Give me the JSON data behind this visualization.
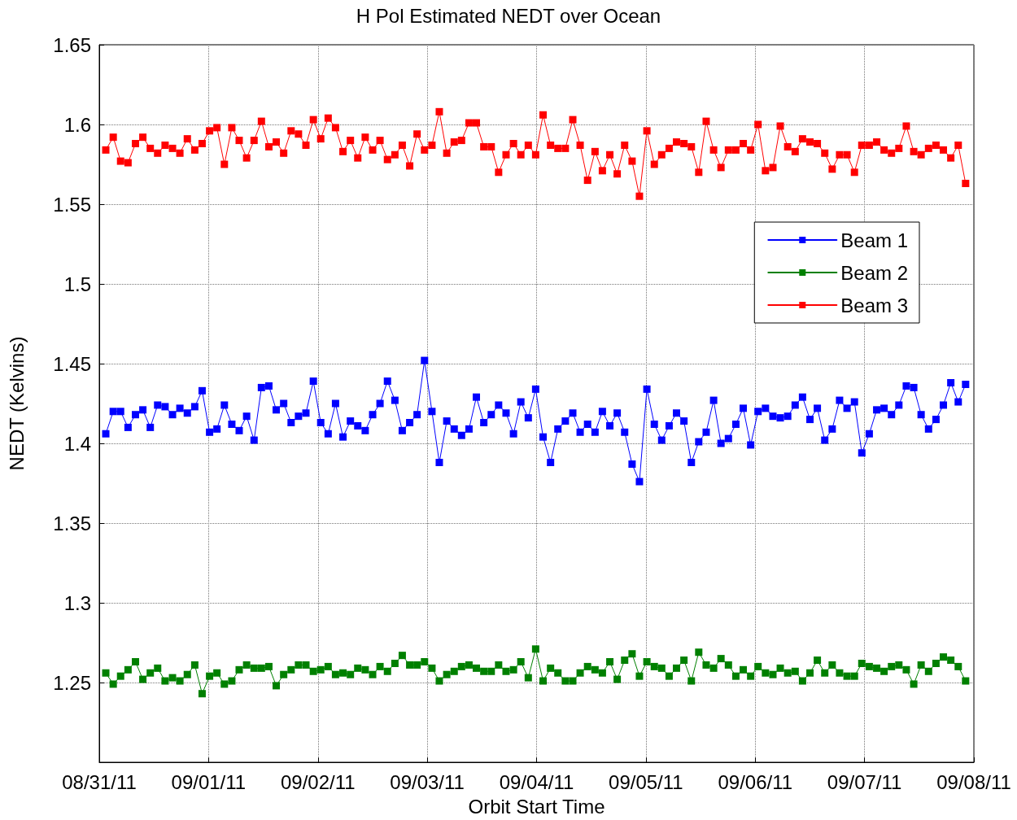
{
  "chart_data": {
    "type": "line",
    "title": "H Pol Estimated NEDT over Ocean",
    "xlabel": "Orbit Start Time",
    "ylabel": "NEDT (Kelvins)",
    "x": [
      "--08-31T01:26",
      "--08-31T03:04",
      "--08-31T04:41",
      "--08-31T06:19",
      "--08-31T07:57",
      "--08-31T09:34",
      "--08-31T11:12",
      "--08-31T12:49",
      "--08-31T14:27",
      "--08-31T16:05",
      "--08-31T17:42",
      "--08-31T19:20",
      "--08-31T20:58",
      "--08-31T22:35",
      "--09-01T00:13",
      "--09-01T01:50",
      "--09-01T03:28",
      "--09-01T05:06",
      "--09-01T06:43",
      "--09-01T08:21",
      "--09-01T09:59",
      "--09-01T11:36",
      "--09-01T13:14",
      "--09-01T14:51",
      "--09-01T16:29",
      "--09-01T18:07",
      "--09-01T19:44",
      "--09-01T21:22",
      "--09-01T23:00",
      "--09-02T00:37",
      "--09-02T02:15",
      "--09-02T03:52",
      "--09-02T05:30",
      "--09-02T07:08",
      "--09-02T08:45",
      "--09-02T10:23",
      "--09-02T12:01",
      "--09-02T13:38",
      "--09-02T15:16",
      "--09-02T16:54",
      "--09-02T18:31",
      "--09-02T20:09",
      "--09-02T21:46",
      "--09-02T23:24",
      "--09-03T01:02",
      "--09-03T02:39",
      "--09-03T04:17",
      "--09-03T05:55",
      "--09-03T07:32",
      "--09-03T09:10",
      "--09-03T10:47",
      "--09-03T12:25",
      "--09-03T14:03",
      "--09-03T15:40",
      "--09-03T17:18",
      "--09-03T18:56",
      "--09-03T20:33",
      "--09-03T22:11",
      "--09-03T23:48",
      "--09-04T01:26",
      "--09-04T03:04",
      "--09-04T04:41",
      "--09-04T06:19",
      "--09-04T07:57",
      "--09-04T09:34",
      "--09-04T11:12",
      "--09-04T12:50",
      "--09-04T14:27",
      "--09-04T16:05",
      "--09-04T17:42",
      "--09-04T19:20",
      "--09-04T20:58",
      "--09-04T22:35",
      "--09-05T00:13",
      "--09-05T01:51",
      "--09-05T03:28",
      "--09-05T05:06",
      "--09-05T06:43",
      "--09-05T08:21",
      "--09-05T09:59",
      "--09-05T11:36",
      "--09-05T13:14",
      "--09-05T14:52",
      "--09-05T16:29",
      "--09-05T18:07",
      "--09-05T19:45",
      "--09-05T21:22",
      "--09-05T23:00",
      "--09-06T00:37",
      "--09-06T02:15",
      "--09-06T03:53",
      "--09-06T05:30",
      "--09-06T07:08",
      "--09-06T08:46",
      "--09-06T10:23",
      "--09-06T12:01",
      "--09-06T13:38",
      "--09-06T15:16",
      "--09-06T16:54",
      "--09-06T18:31",
      "--09-06T20:09",
      "--09-06T21:47",
      "--09-06T23:24",
      "--09-07T01:02",
      "--09-07T02:40",
      "--09-07T04:17",
      "--09-07T05:55",
      "--09-07T07:32",
      "--09-07T09:10",
      "--09-07T10:48",
      "--09-07T12:25",
      "--09-07T14:03",
      "--09-07T15:41",
      "--09-07T17:18",
      "--09-07T18:56",
      "--09-07T20:34",
      "--09-07T22:11"
    ],
    "series": [
      {
        "name": "Beam 1",
        "color": "#0000ff",
        "values": [
          1.406,
          1.42,
          1.42,
          1.41,
          1.418,
          1.421,
          1.41,
          1.424,
          1.423,
          1.418,
          1.422,
          1.419,
          1.423,
          1.433,
          1.407,
          1.409,
          1.424,
          1.412,
          1.408,
          1.417,
          1.402,
          1.435,
          1.436,
          1.421,
          1.425,
          1.413,
          1.417,
          1.419,
          1.439,
          1.413,
          1.406,
          1.425,
          1.404,
          1.414,
          1.411,
          1.408,
          1.418,
          1.425,
          1.439,
          1.427,
          1.408,
          1.413,
          1.418,
          1.452,
          1.42,
          1.388,
          1.414,
          1.409,
          1.405,
          1.409,
          1.429,
          1.413,
          1.418,
          1.424,
          1.419,
          1.406,
          1.426,
          1.416,
          1.434,
          1.404,
          1.388,
          1.409,
          1.414,
          1.419,
          1.407,
          1.412,
          1.407,
          1.42,
          1.411,
          1.419,
          1.407,
          1.387,
          1.376,
          1.434,
          1.412,
          1.402,
          1.411,
          1.419,
          1.414,
          1.388,
          1.401,
          1.407,
          1.427,
          1.4,
          1.403,
          1.412,
          1.422,
          1.399,
          1.42,
          1.422,
          1.417,
          1.416,
          1.417,
          1.424,
          1.429,
          1.415,
          1.422,
          1.402,
          1.409,
          1.427,
          1.422,
          1.426,
          1.394,
          1.406,
          1.421,
          1.422,
          1.418,
          1.424,
          1.436,
          1.435,
          1.418,
          1.409,
          1.415,
          1.424,
          1.438,
          1.426,
          1.437
        ]
      },
      {
        "name": "Beam 2",
        "color": "#008000",
        "values": [
          1.256,
          1.249,
          1.254,
          1.258,
          1.263,
          1.252,
          1.256,
          1.259,
          1.251,
          1.253,
          1.251,
          1.255,
          1.261,
          1.243,
          1.254,
          1.256,
          1.249,
          1.251,
          1.258,
          1.261,
          1.259,
          1.259,
          1.26,
          1.248,
          1.255,
          1.258,
          1.261,
          1.261,
          1.257,
          1.258,
          1.26,
          1.255,
          1.256,
          1.255,
          1.259,
          1.258,
          1.255,
          1.26,
          1.257,
          1.262,
          1.267,
          1.261,
          1.261,
          1.263,
          1.259,
          1.251,
          1.255,
          1.257,
          1.26,
          1.261,
          1.259,
          1.257,
          1.257,
          1.261,
          1.257,
          1.258,
          1.263,
          1.253,
          1.271,
          1.251,
          1.259,
          1.256,
          1.251,
          1.251,
          1.256,
          1.26,
          1.258,
          1.256,
          1.263,
          1.252,
          1.264,
          1.268,
          1.254,
          1.263,
          1.26,
          1.259,
          1.254,
          1.259,
          1.264,
          1.251,
          1.269,
          1.261,
          1.259,
          1.265,
          1.261,
          1.254,
          1.258,
          1.254,
          1.26,
          1.256,
          1.255,
          1.259,
          1.256,
          1.257,
          1.251,
          1.256,
          1.264,
          1.256,
          1.261,
          1.256,
          1.254,
          1.254,
          1.262,
          1.26,
          1.259,
          1.257,
          1.26,
          1.261,
          1.258,
          1.249,
          1.261,
          1.257,
          1.262,
          1.266,
          1.264,
          1.26,
          1.251
        ]
      },
      {
        "name": "Beam 3",
        "color": "#ff0000",
        "values": [
          1.584,
          1.592,
          1.577,
          1.576,
          1.588,
          1.592,
          1.585,
          1.582,
          1.587,
          1.585,
          1.582,
          1.591,
          1.584,
          1.588,
          1.596,
          1.598,
          1.575,
          1.598,
          1.59,
          1.579,
          1.59,
          1.602,
          1.586,
          1.589,
          1.582,
          1.596,
          1.594,
          1.587,
          1.603,
          1.591,
          1.604,
          1.598,
          1.583,
          1.59,
          1.579,
          1.592,
          1.584,
          1.59,
          1.578,
          1.581,
          1.587,
          1.574,
          1.594,
          1.584,
          1.587,
          1.608,
          1.582,
          1.589,
          1.59,
          1.601,
          1.601,
          1.586,
          1.586,
          1.57,
          1.581,
          1.588,
          1.581,
          1.587,
          1.581,
          1.606,
          1.587,
          1.585,
          1.585,
          1.603,
          1.587,
          1.565,
          1.583,
          1.571,
          1.581,
          1.569,
          1.587,
          1.577,
          1.555,
          1.596,
          1.575,
          1.581,
          1.585,
          1.589,
          1.588,
          1.586,
          1.57,
          1.602,
          1.584,
          1.573,
          1.584,
          1.584,
          1.588,
          1.584,
          1.6,
          1.571,
          1.573,
          1.599,
          1.586,
          1.583,
          1.591,
          1.589,
          1.588,
          1.582,
          1.572,
          1.581,
          1.581,
          1.57,
          1.587,
          1.587,
          1.589,
          1.584,
          1.582,
          1.585,
          1.599,
          1.583,
          1.581,
          1.585,
          1.587,
          1.584,
          1.579,
          1.587,
          1.563
        ]
      }
    ],
    "xlim": [
      "--08-31",
      "--09-08"
    ],
    "xticks": [
      {
        "value": "--08-31",
        "label": "08/31/11"
      },
      {
        "value": "--09-01",
        "label": "09/01/11"
      },
      {
        "value": "--09-02",
        "label": "09/02/11"
      },
      {
        "value": "--09-03",
        "label": "09/03/11"
      },
      {
        "value": "--09-04",
        "label": "09/04/11"
      },
      {
        "value": "--09-05",
        "label": "09/05/11"
      },
      {
        "value": "--09-06",
        "label": "09/06/11"
      },
      {
        "value": "--09-07",
        "label": "09/07/11"
      },
      {
        "value": "--09-08",
        "label": "09/08/11"
      }
    ],
    "ylim": [
      1.2,
      1.65
    ],
    "yticks": [
      1.25,
      1.3,
      1.35,
      1.4,
      1.45,
      1.5,
      1.55,
      1.6,
      1.65
    ],
    "grid": true,
    "legend": "top right",
    "marker": "square",
    "line_style": "solid"
  }
}
